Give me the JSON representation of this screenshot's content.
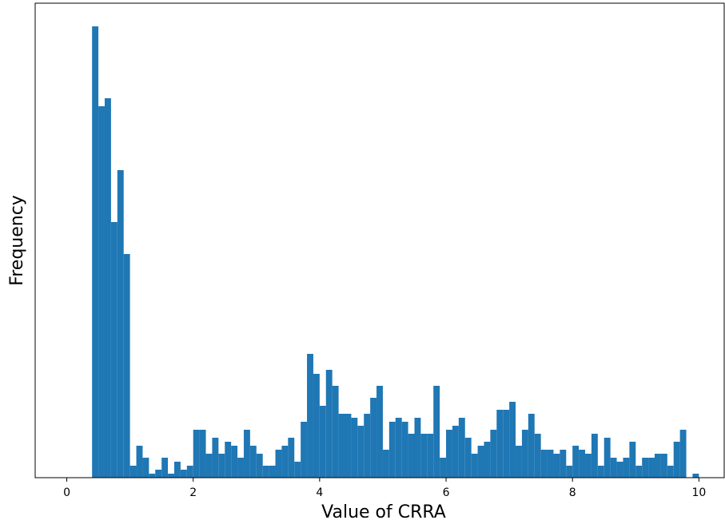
{
  "chart_data": {
    "type": "histogram",
    "x_label": "Value of CRRA",
    "y_label": "Frequency",
    "color": "#1f77b4",
    "bins": [
      0.4,
      0.5,
      0.6,
      0.7,
      0.8,
      0.9,
      1.0,
      1.1,
      1.2,
      1.3,
      1.4,
      1.5,
      1.6,
      1.7,
      1.8,
      1.9,
      2.0,
      2.1,
      2.2,
      2.3,
      2.4,
      2.5,
      2.6,
      2.7,
      2.8,
      2.9,
      3.0,
      3.1,
      3.2,
      3.3,
      3.4,
      3.5,
      3.6,
      3.7,
      3.8,
      3.9,
      4.0,
      4.1,
      4.2,
      4.3,
      4.4,
      4.5,
      4.6,
      4.7,
      4.8,
      4.9,
      5.0,
      5.1,
      5.2,
      5.3,
      5.4,
      5.5,
      5.6,
      5.7,
      5.8,
      5.9,
      6.0,
      6.1,
      6.2,
      6.3,
      6.4,
      6.5,
      6.6,
      6.7,
      6.8,
      6.9,
      7.0,
      7.1,
      7.2,
      7.3,
      7.4,
      7.5,
      7.6,
      7.7,
      7.8,
      7.9,
      8.0,
      8.1,
      8.2,
      8.3,
      8.4,
      8.5,
      8.6,
      8.7,
      8.8,
      8.9,
      9.0,
      9.1,
      9.2,
      9.3,
      9.4,
      9.5,
      9.6,
      9.7,
      9.8,
      9.9,
      10.0
    ],
    "counts": [
      113,
      93,
      95,
      64,
      77,
      56,
      3,
      8,
      5,
      1,
      2,
      5,
      1,
      4,
      2,
      3,
      12,
      12,
      6,
      10,
      6,
      9,
      8,
      5,
      12,
      8,
      6,
      3,
      3,
      7,
      8,
      10,
      4,
      14,
      31,
      26,
      18,
      27,
      23,
      16,
      16,
      15,
      13,
      16,
      20,
      23,
      7,
      14,
      15,
      14,
      11,
      15,
      11,
      11,
      23,
      5,
      12,
      13,
      15,
      10,
      6,
      8,
      9,
      12,
      17,
      17,
      19,
      8,
      12,
      16,
      11,
      7,
      7,
      6,
      7,
      3,
      8,
      7,
      6,
      11,
      3,
      10,
      5,
      4,
      5,
      9,
      3,
      5,
      5,
      6,
      6,
      3,
      9,
      12,
      0,
      1
    ],
    "xlim": [
      -0.5,
      10.4
    ],
    "ylim": [
      0,
      118.8
    ],
    "xticks": [
      0,
      2,
      4,
      6,
      8,
      10
    ]
  }
}
